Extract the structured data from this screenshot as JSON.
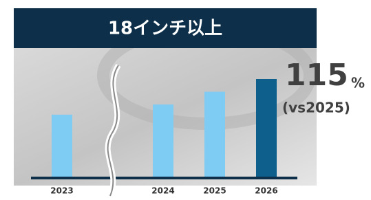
{
  "chart_data": {
    "type": "bar",
    "title": "18インチ以上",
    "categories": [
      "2023",
      "2024",
      "2025",
      "2026"
    ],
    "values": [
      73,
      85,
      100,
      115
    ],
    "colors": [
      "#7ecbf3",
      "#7ecbf3",
      "#7ecbf3",
      "#0f5f8c"
    ],
    "annotation": {
      "value": "115",
      "unit": "%",
      "note": "(vs2025)"
    }
  }
}
